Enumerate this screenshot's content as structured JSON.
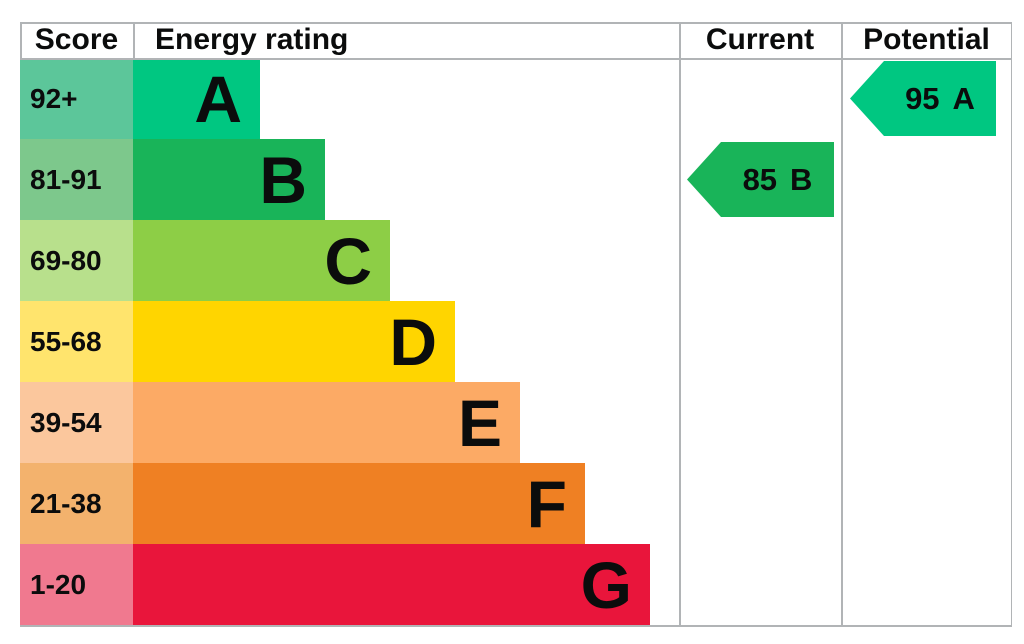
{
  "headers": {
    "score": "Score",
    "rating": "Energy rating",
    "current": "Current",
    "potential": "Potential"
  },
  "bands": [
    {
      "score": "92+",
      "letter": "A",
      "color": "#00c781",
      "score_color": "#5cc69a"
    },
    {
      "score": "81-91",
      "letter": "B",
      "color": "#19b459",
      "score_color": "#7dc88c"
    },
    {
      "score": "69-80",
      "letter": "C",
      "color": "#8dce46",
      "score_color": "#b8e08c"
    },
    {
      "score": "55-68",
      "letter": "D",
      "color": "#ffd500",
      "score_color": "#ffe46d"
    },
    {
      "score": "39-54",
      "letter": "E",
      "color": "#fcaa65",
      "score_color": "#fbc79d"
    },
    {
      "score": "21-38",
      "letter": "F",
      "color": "#ef8023",
      "score_color": "#f3b26d"
    },
    {
      "score": "1-20",
      "letter": "G",
      "color": "#e9153b",
      "score_color": "#f0798f"
    }
  ],
  "current": {
    "value": "85",
    "letter": "B",
    "band_index": 1,
    "color": "#19b459"
  },
  "potential": {
    "value": "95",
    "letter": "A",
    "band_index": 0,
    "color": "#00c781"
  },
  "chart_data": {
    "type": "bar",
    "orientation": "horizontal",
    "column_headers": [
      "Score",
      "Energy rating",
      "Current",
      "Potential"
    ],
    "categories": [
      "A",
      "B",
      "C",
      "D",
      "E",
      "F",
      "G"
    ],
    "category_score_ranges": [
      "92+",
      "81-91",
      "69-80",
      "55-68",
      "39-54",
      "21-38",
      "1-20"
    ],
    "bar_lengths_relative": [
      1,
      2,
      3,
      4,
      5,
      6,
      7
    ],
    "bar_colors": [
      "#00c781",
      "#19b459",
      "#8dce46",
      "#ffd500",
      "#fcaa65",
      "#ef8023",
      "#e9153b"
    ],
    "annotations": [
      {
        "label": "Current",
        "score": 85,
        "band": "B",
        "color": "#19b459"
      },
      {
        "label": "Potential",
        "score": 95,
        "band": "A",
        "color": "#00c781"
      }
    ],
    "legend": "none",
    "grid": "column dividers only"
  }
}
